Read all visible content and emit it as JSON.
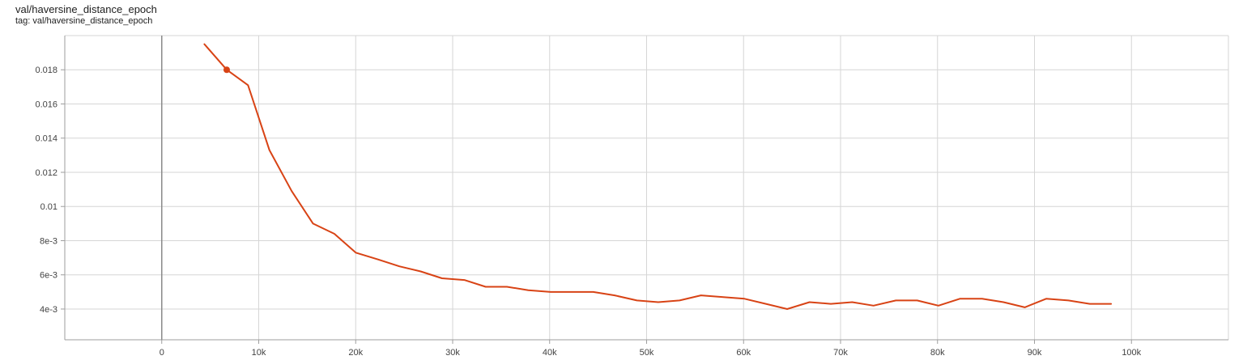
{
  "card": {
    "title": "val/haversine_distance_epoch",
    "tag": "tag: val/haversine_distance_epoch"
  },
  "chart_data": {
    "type": "line",
    "title": "val/haversine_distance_epoch",
    "xlabel": "",
    "ylabel": "",
    "xlim": [
      -10000,
      110000
    ],
    "ylim": [
      0.0022,
      0.02
    ],
    "grid": true,
    "x_ticks": [
      0,
      10000,
      20000,
      30000,
      40000,
      50000,
      60000,
      70000,
      80000,
      90000,
      100000
    ],
    "x_tick_labels": [
      "0",
      "10k",
      "20k",
      "30k",
      "40k",
      "50k",
      "60k",
      "70k",
      "80k",
      "90k",
      "100k"
    ],
    "y_ticks": [
      0.004,
      0.006,
      0.008,
      0.01,
      0.012,
      0.014,
      0.016,
      0.018
    ],
    "y_tick_labels": [
      "4e-3",
      "6e-3",
      "8e-3",
      "0.01",
      "0.012",
      "0.014",
      "0.016",
      "0.018"
    ],
    "series": [
      {
        "color": "#d84315",
        "x": [
          4400,
          6700,
          8900,
          11100,
          13400,
          15600,
          17800,
          20000,
          22300,
          24500,
          26700,
          28900,
          31200,
          33400,
          35600,
          37800,
          40100,
          42300,
          44500,
          46700,
          49000,
          51200,
          53400,
          55600,
          57900,
          60100,
          62300,
          64500,
          66800,
          69000,
          71200,
          73400,
          75700,
          77900,
          80100,
          82300,
          84600,
          86800,
          89000,
          91200,
          93500,
          95700,
          97900
        ],
        "y": [
          0.0195,
          0.018,
          0.0171,
          0.0133,
          0.0109,
          0.009,
          0.0084,
          0.0073,
          0.0069,
          0.0065,
          0.0062,
          0.0058,
          0.0057,
          0.0053,
          0.0053,
          0.0051,
          0.005,
          0.005,
          0.005,
          0.0048,
          0.0045,
          0.0044,
          0.0045,
          0.0048,
          0.0047,
          0.0046,
          0.0043,
          0.004,
          0.0044,
          0.0043,
          0.0044,
          0.0042,
          0.0045,
          0.0045,
          0.0042,
          0.0046,
          0.0046,
          0.0044,
          0.0041,
          0.0046,
          0.0045,
          0.0043,
          0.0043
        ],
        "highlight_index": 1
      }
    ]
  }
}
